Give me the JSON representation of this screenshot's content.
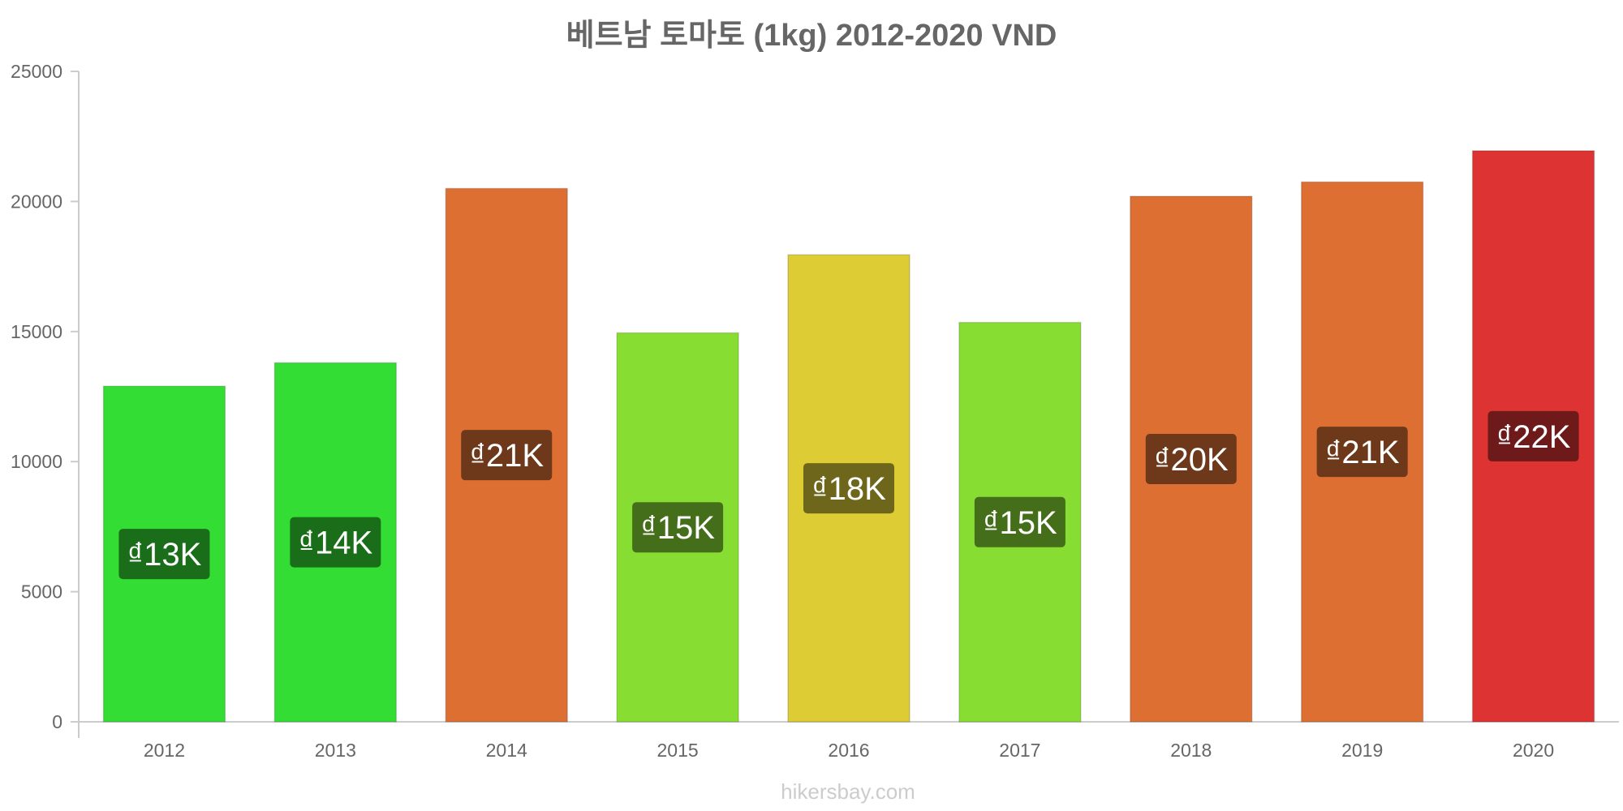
{
  "chart_data": {
    "type": "bar",
    "title": "베트남 토마토 (1kg) 2012-2020 VND",
    "categories": [
      "2012",
      "2013",
      "2014",
      "2015",
      "2016",
      "2017",
      "2018",
      "2019",
      "2020"
    ],
    "values": [
      12900,
      13800,
      20500,
      14950,
      17950,
      15350,
      20200,
      20750,
      21950
    ],
    "bar_labels": [
      "₫13K",
      "₫14K",
      "₫21K",
      "₫15K",
      "₫18K",
      "₫15K",
      "₫20K",
      "₫21K",
      "₫22K"
    ],
    "bar_colors": [
      "#33dd33",
      "#33dd33",
      "#dd6f33",
      "#88dd33",
      "#ddcc33",
      "#88dd33",
      "#dd6f33",
      "#dd6f33",
      "#dd3333"
    ],
    "label_bg_colors": [
      "#1a6e1a",
      "#1a6e1a",
      "#6e381a",
      "#446e1a",
      "#6e661a",
      "#446e1a",
      "#6e381a",
      "#6e381a",
      "#6e1a1a"
    ],
    "y_ticks": [
      "0",
      "5000",
      "10000",
      "15000",
      "20000",
      "25000"
    ],
    "ylim": [
      0,
      25000
    ],
    "xlabel": "",
    "ylabel": "",
    "grid": false,
    "legend": "none"
  },
  "watermark": "hikersbay.com",
  "colors": {
    "text": "#666666",
    "axis": "#cccccc",
    "watermark": "#cccccc"
  }
}
